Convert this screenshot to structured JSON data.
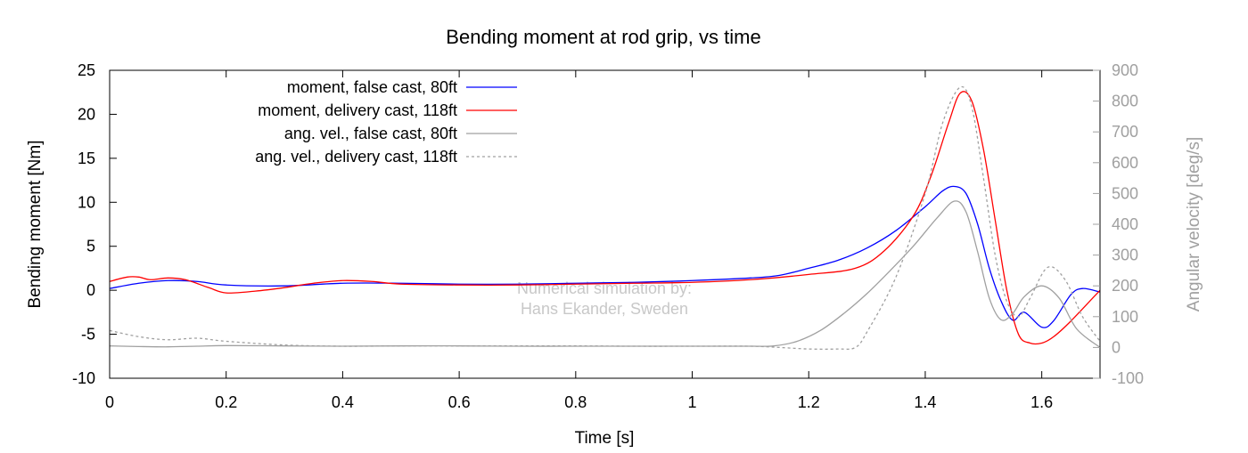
{
  "chart_data": {
    "type": "line",
    "title": "Bending moment at rod grip, vs time",
    "xlabel": "Time [s]",
    "ylabel": "Bending moment [Nm]",
    "y2label": "Angular velocity [deg/s]",
    "xlim": [
      0,
      1.7
    ],
    "ylim": [
      -10,
      25
    ],
    "y2lim": [
      -100,
      900
    ],
    "xticks": [
      "0",
      "0.2",
      "0.4",
      "0.6",
      "0.8",
      "1",
      "1.2",
      "1.4",
      "1.6"
    ],
    "yticks": [
      "-10",
      "-5",
      "0",
      "5",
      "10",
      "15",
      "20",
      "25"
    ],
    "y2ticks": [
      "-100",
      "0",
      "100",
      "200",
      "300",
      "400",
      "500",
      "600",
      "700",
      "800",
      "900"
    ],
    "legend_position": "top-left",
    "annotation": [
      "Numerical simulation by:",
      "Hans Ekander, Sweden"
    ],
    "series": [
      {
        "name": "moment, false cast, 80ft",
        "axis": "left",
        "color": "#0000ff",
        "dash": "solid",
        "points": [
          [
            0,
            0.2
          ],
          [
            0.05,
            0.8
          ],
          [
            0.1,
            1.1
          ],
          [
            0.15,
            1.0
          ],
          [
            0.2,
            0.6
          ],
          [
            0.3,
            0.5
          ],
          [
            0.4,
            0.8
          ],
          [
            0.5,
            0.8
          ],
          [
            0.6,
            0.7
          ],
          [
            0.7,
            0.7
          ],
          [
            0.8,
            0.8
          ],
          [
            0.9,
            0.9
          ],
          [
            1.0,
            1.1
          ],
          [
            1.1,
            1.4
          ],
          [
            1.15,
            1.7
          ],
          [
            1.2,
            2.5
          ],
          [
            1.25,
            3.4
          ],
          [
            1.3,
            4.8
          ],
          [
            1.35,
            6.8
          ],
          [
            1.4,
            9.5
          ],
          [
            1.43,
            11.3
          ],
          [
            1.45,
            11.8
          ],
          [
            1.47,
            11.0
          ],
          [
            1.49,
            7.5
          ],
          [
            1.51,
            2.5
          ],
          [
            1.53,
            -1.2
          ],
          [
            1.55,
            -3.4
          ],
          [
            1.57,
            -2.5
          ],
          [
            1.6,
            -4.2
          ],
          [
            1.62,
            -3.5
          ],
          [
            1.65,
            -0.5
          ],
          [
            1.67,
            0.2
          ],
          [
            1.7,
            -0.2
          ]
        ]
      },
      {
        "name": "moment, delivery cast, 118ft",
        "axis": "left",
        "color": "#ff0000",
        "dash": "solid",
        "points": [
          [
            0,
            1.0
          ],
          [
            0.03,
            1.5
          ],
          [
            0.05,
            1.5
          ],
          [
            0.07,
            1.2
          ],
          [
            0.1,
            1.4
          ],
          [
            0.13,
            1.2
          ],
          [
            0.17,
            0.3
          ],
          [
            0.2,
            -0.3
          ],
          [
            0.25,
            -0.1
          ],
          [
            0.3,
            0.3
          ],
          [
            0.35,
            0.8
          ],
          [
            0.4,
            1.1
          ],
          [
            0.45,
            1.0
          ],
          [
            0.5,
            0.7
          ],
          [
            0.6,
            0.6
          ],
          [
            0.7,
            0.6
          ],
          [
            0.8,
            0.7
          ],
          [
            0.9,
            0.8
          ],
          [
            1.0,
            0.9
          ],
          [
            1.1,
            1.2
          ],
          [
            1.2,
            1.8
          ],
          [
            1.28,
            2.5
          ],
          [
            1.33,
            4.5
          ],
          [
            1.38,
            8.5
          ],
          [
            1.41,
            13.0
          ],
          [
            1.44,
            19.0
          ],
          [
            1.46,
            22.4
          ],
          [
            1.48,
            21.5
          ],
          [
            1.5,
            16.0
          ],
          [
            1.52,
            8.0
          ],
          [
            1.54,
            0.0
          ],
          [
            1.56,
            -5.0
          ],
          [
            1.58,
            -6.0
          ],
          [
            1.6,
            -6.0
          ],
          [
            1.62,
            -5.3
          ],
          [
            1.65,
            -3.5
          ],
          [
            1.7,
            0.0
          ]
        ]
      },
      {
        "name": "ang. vel., false cast, 80ft",
        "axis": "right",
        "color": "#a0a0a0",
        "dash": "solid",
        "points": [
          [
            0,
            5
          ],
          [
            0.05,
            3
          ],
          [
            0.1,
            2
          ],
          [
            0.15,
            4
          ],
          [
            0.2,
            6
          ],
          [
            0.3,
            5
          ],
          [
            0.4,
            4
          ],
          [
            0.5,
            5
          ],
          [
            0.6,
            5
          ],
          [
            0.7,
            4
          ],
          [
            0.8,
            4
          ],
          [
            0.9,
            4
          ],
          [
            1.0,
            4
          ],
          [
            1.1,
            4
          ],
          [
            1.14,
            5
          ],
          [
            1.18,
            20
          ],
          [
            1.22,
            55
          ],
          [
            1.26,
            110
          ],
          [
            1.3,
            175
          ],
          [
            1.34,
            250
          ],
          [
            1.38,
            330
          ],
          [
            1.42,
            420
          ],
          [
            1.45,
            475
          ],
          [
            1.47,
            440
          ],
          [
            1.49,
            310
          ],
          [
            1.51,
            160
          ],
          [
            1.53,
            90
          ],
          [
            1.55,
            110
          ],
          [
            1.57,
            165
          ],
          [
            1.6,
            200
          ],
          [
            1.63,
            160
          ],
          [
            1.66,
            60
          ],
          [
            1.7,
            0
          ]
        ]
      },
      {
        "name": "ang. vel., delivery cast, 118ft",
        "axis": "right",
        "color": "#a0a0a0",
        "dash": "dashed",
        "points": [
          [
            0,
            55
          ],
          [
            0.05,
            35
          ],
          [
            0.1,
            25
          ],
          [
            0.15,
            30
          ],
          [
            0.2,
            20
          ],
          [
            0.3,
            8
          ],
          [
            0.4,
            4
          ],
          [
            0.5,
            5
          ],
          [
            0.6,
            5
          ],
          [
            0.7,
            5
          ],
          [
            0.8,
            5
          ],
          [
            0.9,
            4
          ],
          [
            1.0,
            4
          ],
          [
            1.1,
            4
          ],
          [
            1.15,
            0
          ],
          [
            1.2,
            -5
          ],
          [
            1.25,
            -5
          ],
          [
            1.28,
            0
          ],
          [
            1.3,
            50
          ],
          [
            1.35,
            230
          ],
          [
            1.4,
            500
          ],
          [
            1.43,
            730
          ],
          [
            1.46,
            845
          ],
          [
            1.48,
            780
          ],
          [
            1.5,
            550
          ],
          [
            1.52,
            300
          ],
          [
            1.54,
            150
          ],
          [
            1.56,
            100
          ],
          [
            1.58,
            160
          ],
          [
            1.61,
            260
          ],
          [
            1.64,
            220
          ],
          [
            1.67,
            100
          ],
          [
            1.7,
            20
          ]
        ]
      }
    ]
  }
}
